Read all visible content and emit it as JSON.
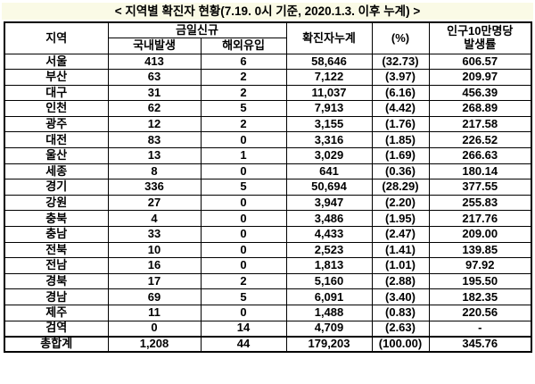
{
  "title": "< 지역별 확진자 현황(7.19. 0시 기준, 2020.1.3. 이후 누계) >",
  "colors": {
    "title_bg": "#FAFAE6",
    "border": "#000000",
    "text": "#000000",
    "background": "#FFFFFF"
  },
  "table": {
    "headers": {
      "region": "지역",
      "today_new": "금일신규",
      "domestic": "국내발생",
      "imported": "해외유입",
      "cumulative": "확진자누계",
      "percent": "(%)",
      "rate_line1": "인구10만명당",
      "rate_line2": "발생률"
    },
    "rows": [
      {
        "region": "서울",
        "domestic": "413",
        "imported": "6",
        "cumulative": "58,646",
        "percent": "(32.73)",
        "rate": "606.57"
      },
      {
        "region": "부산",
        "domestic": "63",
        "imported": "2",
        "cumulative": "7,122",
        "percent": "(3.97)",
        "rate": "209.97"
      },
      {
        "region": "대구",
        "domestic": "31",
        "imported": "2",
        "cumulative": "11,037",
        "percent": "(6.16)",
        "rate": "456.39"
      },
      {
        "region": "인천",
        "domestic": "62",
        "imported": "5",
        "cumulative": "7,913",
        "percent": "(4.42)",
        "rate": "268.89"
      },
      {
        "region": "광주",
        "domestic": "12",
        "imported": "2",
        "cumulative": "3,155",
        "percent": "(1.76)",
        "rate": "217.58"
      },
      {
        "region": "대전",
        "domestic": "83",
        "imported": "0",
        "cumulative": "3,316",
        "percent": "(1.85)",
        "rate": "226.52"
      },
      {
        "region": "울산",
        "domestic": "13",
        "imported": "1",
        "cumulative": "3,029",
        "percent": "(1.69)",
        "rate": "266.63"
      },
      {
        "region": "세종",
        "domestic": "8",
        "imported": "0",
        "cumulative": "641",
        "percent": "(0.36)",
        "rate": "180.14"
      },
      {
        "region": "경기",
        "domestic": "336",
        "imported": "5",
        "cumulative": "50,694",
        "percent": "(28.29)",
        "rate": "377.55"
      },
      {
        "region": "강원",
        "domestic": "27",
        "imported": "0",
        "cumulative": "3,947",
        "percent": "(2.20)",
        "rate": "255.83"
      },
      {
        "region": "충북",
        "domestic": "4",
        "imported": "0",
        "cumulative": "3,486",
        "percent": "(1.95)",
        "rate": "217.76"
      },
      {
        "region": "충남",
        "domestic": "33",
        "imported": "0",
        "cumulative": "4,433",
        "percent": "(2.47)",
        "rate": "209.00"
      },
      {
        "region": "전북",
        "domestic": "10",
        "imported": "0",
        "cumulative": "2,523",
        "percent": "(1.41)",
        "rate": "139.85"
      },
      {
        "region": "전남",
        "domestic": "16",
        "imported": "0",
        "cumulative": "1,813",
        "percent": "(1.01)",
        "rate": "97.92"
      },
      {
        "region": "경북",
        "domestic": "17",
        "imported": "2",
        "cumulative": "5,160",
        "percent": "(2.88)",
        "rate": "195.50"
      },
      {
        "region": "경남",
        "domestic": "69",
        "imported": "5",
        "cumulative": "6,091",
        "percent": "(3.40)",
        "rate": "182.35"
      },
      {
        "region": "제주",
        "domestic": "11",
        "imported": "0",
        "cumulative": "1,488",
        "percent": "(0.83)",
        "rate": "220.56"
      },
      {
        "region": "검역",
        "domestic": "0",
        "imported": "14",
        "cumulative": "4,709",
        "percent": "(2.63)",
        "rate": "-"
      }
    ],
    "total_row": {
      "region": "총합계",
      "domestic": "1,208",
      "imported": "44",
      "cumulative": "179,203",
      "percent": "(100.00)",
      "rate": "345.76"
    }
  }
}
